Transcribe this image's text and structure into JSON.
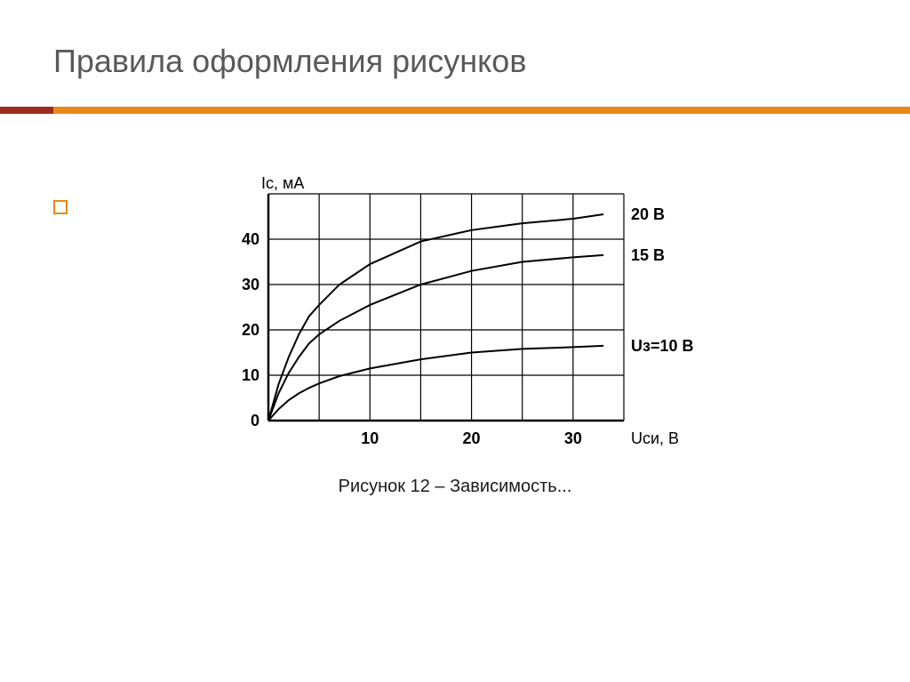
{
  "title": "Правила оформления рисунков",
  "accent": {
    "left_color": "#9a2e1f",
    "right_color": "#e8891a",
    "height": 8
  },
  "bullet": {
    "border_color": "#e8891a",
    "size": 16
  },
  "chart": {
    "type": "line",
    "y_axis_label": "Ic, мА",
    "x_axis_label": "Uси, В",
    "x_ticks": [
      "10",
      "20",
      "30"
    ],
    "y_ticks": [
      "0",
      "10",
      "20",
      "30",
      "40"
    ],
    "xlim": [
      0,
      35
    ],
    "ylim": [
      0,
      50
    ],
    "x_grid_step": 5,
    "y_grid_step": 10,
    "grid_color": "#000000",
    "grid_width": 1.2,
    "tick_fontsize": 18,
    "label_fontsize": 18,
    "series": [
      {
        "label": "20 В",
        "color": "#000000",
        "line_width": 2,
        "points": [
          [
            0,
            0
          ],
          [
            1,
            8
          ],
          [
            2,
            14
          ],
          [
            3,
            19
          ],
          [
            4,
            23
          ],
          [
            5,
            25.5
          ],
          [
            7,
            30
          ],
          [
            10,
            34.5
          ],
          [
            15,
            39.5
          ],
          [
            20,
            42
          ],
          [
            25,
            43.5
          ],
          [
            30,
            44.5
          ],
          [
            33,
            45.5
          ]
        ]
      },
      {
        "label": "15 В",
        "color": "#000000",
        "line_width": 2,
        "points": [
          [
            0,
            0
          ],
          [
            1,
            6
          ],
          [
            2,
            10.5
          ],
          [
            3,
            14
          ],
          [
            4,
            17
          ],
          [
            5,
            19
          ],
          [
            7,
            22
          ],
          [
            10,
            25.5
          ],
          [
            15,
            30
          ],
          [
            20,
            33
          ],
          [
            25,
            35
          ],
          [
            30,
            36
          ],
          [
            33,
            36.5
          ]
        ]
      },
      {
        "label": "Uз=10 В",
        "color": "#000000",
        "line_width": 2,
        "points": [
          [
            0,
            0
          ],
          [
            1,
            2.5
          ],
          [
            2,
            4.5
          ],
          [
            3,
            6
          ],
          [
            4,
            7.2
          ],
          [
            5,
            8.2
          ],
          [
            7,
            9.8
          ],
          [
            10,
            11.5
          ],
          [
            15,
            13.5
          ],
          [
            20,
            15
          ],
          [
            25,
            15.8
          ],
          [
            30,
            16.2
          ],
          [
            33,
            16.5
          ]
        ]
      }
    ],
    "plot_background": "#ffffff",
    "axis_color": "#000000",
    "axis_width": 2.5
  },
  "caption": "Рисунок 12 – Зависимость..."
}
